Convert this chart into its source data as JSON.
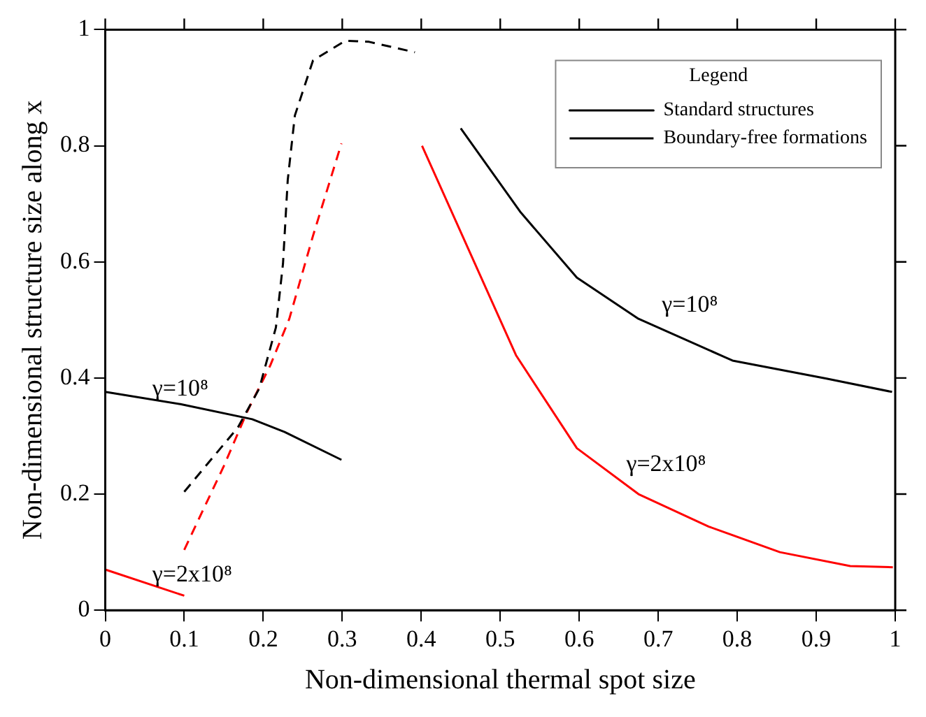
{
  "chart_data": {
    "type": "line",
    "xlabel": "Non-dimensional thermal spot size",
    "ylabel": "Non-dimensional structure size along x",
    "legend_title": "Legend",
    "legend": "top right",
    "grid": false,
    "marker": "none",
    "xlim": [
      0,
      1
    ],
    "xticks": [
      0,
      0.1,
      0.2,
      0.3,
      0.4,
      0.5,
      0.6,
      0.7,
      0.8,
      0.9,
      1
    ],
    "ylim": [
      0,
      1
    ],
    "yticks": [
      0,
      0.2,
      0.4,
      0.6,
      0.8,
      1
    ],
    "series": [
      {
        "name": "Standard structures",
        "color": "#000000",
        "line_style": "solid",
        "x": [
          0,
          0.095,
          0.186,
          0.227,
          0.299
        ],
        "values": [
          0.376,
          0.355,
          0.329,
          0.307,
          0.259
        ]
      },
      {
        "name": "Boundary-free formations",
        "color": "#000000",
        "line_style": "dashed",
        "x": [
          0.1,
          0.168,
          0.195,
          0.216,
          0.225,
          0.231,
          0.24,
          0.263,
          0.304,
          0.334,
          0.392
        ],
        "values": [
          0.204,
          0.315,
          0.382,
          0.487,
          0.597,
          0.741,
          0.852,
          0.947,
          0.981,
          0.979,
          0.961
        ]
      },
      {
        "color": "#000000",
        "line_style": "solid",
        "x": [
          0.45,
          0.526,
          0.597,
          0.675,
          0.794,
          0.913,
          0.996
        ],
        "values": [
          0.83,
          0.685,
          0.573,
          0.502,
          0.43,
          0.399,
          0.376
        ]
      },
      {
        "color": "#ff0000",
        "line_style": "solid",
        "x": [
          0,
          0.1
        ],
        "values": [
          0.07,
          0.025
        ]
      },
      {
        "color": "#ff0000",
        "line_style": "dashed",
        "x": [
          0.1,
          0.15,
          0.18,
          0.209,
          0.233,
          0.263,
          0.299
        ],
        "values": [
          0.104,
          0.248,
          0.343,
          0.422,
          0.502,
          0.645,
          0.804
        ]
      },
      {
        "color": "#ff0000",
        "line_style": "solid",
        "x": [
          0.401,
          0.52,
          0.597,
          0.675,
          0.764,
          0.854,
          0.943,
          0.997
        ],
        "values": [
          0.8,
          0.439,
          0.279,
          0.2,
          0.144,
          0.1,
          0.076,
          0.074
        ]
      }
    ],
    "annotations": [
      "γ=10⁸",
      "γ=2x10⁸",
      "γ=10⁸",
      "γ=2x10⁸"
    ]
  }
}
